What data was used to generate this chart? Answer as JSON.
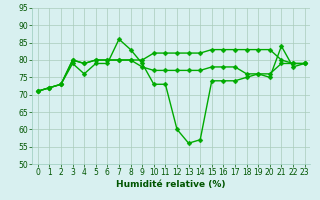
{
  "xlabel": "Humidité relative (%)",
  "bg_color": "#d8f0f0",
  "grid_color": "#aaccbb",
  "line_color": "#00aa00",
  "ylim": [
    50,
    95
  ],
  "yticks": [
    50,
    55,
    60,
    65,
    70,
    75,
    80,
    85,
    90,
    95
  ],
  "xlim": [
    -0.5,
    23.5
  ],
  "xticks": [
    0,
    1,
    2,
    3,
    4,
    5,
    6,
    7,
    8,
    9,
    10,
    11,
    12,
    13,
    14,
    15,
    16,
    17,
    18,
    19,
    20,
    21,
    22,
    23
  ],
  "line1": [
    71,
    72,
    73,
    79,
    76,
    79,
    79,
    86,
    83,
    79,
    73,
    73,
    60,
    56,
    57,
    74,
    74,
    74,
    75,
    76,
    75,
    84,
    78,
    79
  ],
  "line2": [
    71,
    72,
    73,
    80,
    79,
    80,
    80,
    80,
    80,
    80,
    82,
    82,
    82,
    82,
    82,
    83,
    83,
    83,
    83,
    83,
    83,
    80,
    79,
    79
  ],
  "line3": [
    71,
    72,
    73,
    80,
    79,
    80,
    80,
    80,
    80,
    78,
    77,
    77,
    77,
    77,
    77,
    78,
    78,
    78,
    76,
    76,
    76,
    79,
    79,
    79
  ],
  "markersize": 2.5,
  "linewidth": 1.0,
  "tick_labelsize": 5.5,
  "xlabel_fontsize": 6.5
}
